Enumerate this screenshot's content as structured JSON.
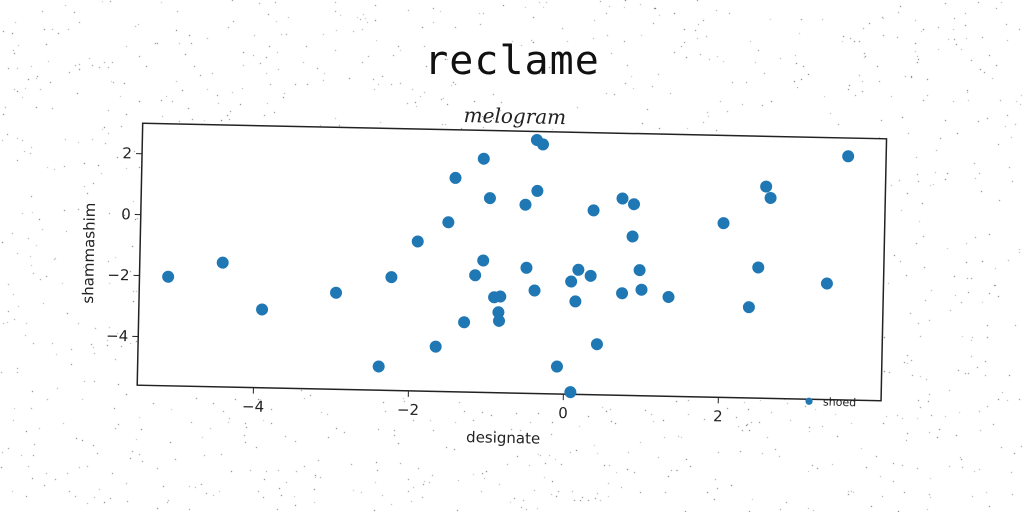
{
  "figure": {
    "suptitle": "reclame"
  },
  "chart_data": {
    "type": "scatter",
    "title": "melogram",
    "xlabel": "designate",
    "ylabel": "shammashim",
    "xlim": [
      -5.5,
      4.1
    ],
    "ylim": [
      -5.6,
      3.0
    ],
    "xticks": [
      "−4",
      "−2",
      "0",
      "2"
    ],
    "yticks": [
      "−4",
      "−2",
      "0",
      "2"
    ],
    "grid": false,
    "legend_position": "bottom-right",
    "series": [
      {
        "name": "shoed",
        "color": "#1f77b4",
        "points": [
          {
            "x": -5.13,
            "y": -2.02
          },
          {
            "x": -4.43,
            "y": -1.52
          },
          {
            "x": -3.91,
            "y": -3.03
          },
          {
            "x": -2.96,
            "y": -2.43
          },
          {
            "x": -2.25,
            "y": -1.88
          },
          {
            "x": -2.39,
            "y": -4.82
          },
          {
            "x": -1.92,
            "y": -0.69
          },
          {
            "x": -1.66,
            "y": -4.13
          },
          {
            "x": -1.53,
            "y": -0.04
          },
          {
            "x": -1.45,
            "y": 1.42
          },
          {
            "x": -1.3,
            "y": -3.31
          },
          {
            "x": -1.17,
            "y": -1.76
          },
          {
            "x": -1.09,
            "y": 2.07
          },
          {
            "x": -1.07,
            "y": -1.27
          },
          {
            "x": -1.0,
            "y": 0.78
          },
          {
            "x": -0.92,
            "y": -2.47
          },
          {
            "x": -0.84,
            "y": -2.44
          },
          {
            "x": -0.86,
            "y": -2.96
          },
          {
            "x": -0.85,
            "y": -3.24
          },
          {
            "x": -0.54,
            "y": 0.59
          },
          {
            "x": -0.51,
            "y": -1.48
          },
          {
            "x": -0.41,
            "y": 2.72
          },
          {
            "x": -0.33,
            "y": 2.58
          },
          {
            "x": -0.39,
            "y": 1.05
          },
          {
            "x": -0.4,
            "y": -2.22
          },
          {
            "x": -0.09,
            "y": -4.7
          },
          {
            "x": 0.07,
            "y": -1.9
          },
          {
            "x": 0.09,
            "y": -5.53
          },
          {
            "x": 0.13,
            "y": -2.55
          },
          {
            "x": 0.16,
            "y": -1.51
          },
          {
            "x": 0.32,
            "y": -1.7
          },
          {
            "x": 0.34,
            "y": 0.45
          },
          {
            "x": 0.42,
            "y": -3.94
          },
          {
            "x": 0.71,
            "y": 0.86
          },
          {
            "x": 0.73,
            "y": -2.25
          },
          {
            "x": 0.86,
            "y": 0.68
          },
          {
            "x": 0.85,
            "y": -0.38
          },
          {
            "x": 0.95,
            "y": -1.48
          },
          {
            "x": 0.98,
            "y": -2.12
          },
          {
            "x": 1.33,
            "y": -2.34
          },
          {
            "x": 2.02,
            "y": 0.12
          },
          {
            "x": 2.37,
            "y": -2.62
          },
          {
            "x": 2.48,
            "y": -1.31
          },
          {
            "x": 2.56,
            "y": 1.35
          },
          {
            "x": 2.62,
            "y": 0.98
          },
          {
            "x": 3.37,
            "y": -1.79
          },
          {
            "x": 3.61,
            "y": 2.4
          }
        ]
      }
    ]
  }
}
